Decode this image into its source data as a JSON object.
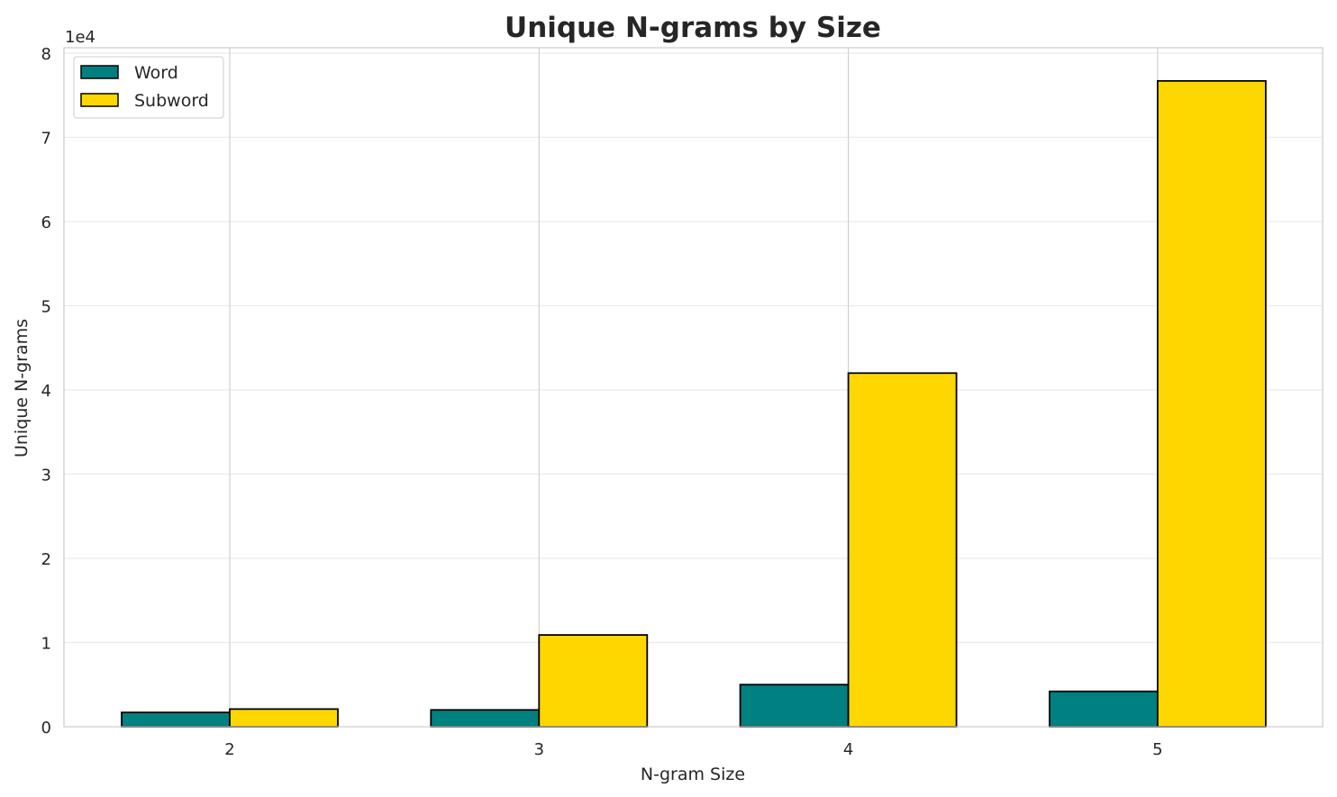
{
  "chart_data": {
    "type": "bar",
    "title": "Unique N-grams by Size",
    "xlabel": "N-gram Size",
    "ylabel": "Unique N-grams",
    "offset_label": "1e4",
    "categories": [
      "2",
      "3",
      "4",
      "5"
    ],
    "series": [
      {
        "name": "Word",
        "color": "#008080",
        "values": [
          1700,
          2000,
          5000,
          4200
        ]
      },
      {
        "name": "Subword",
        "color": "#FFD700",
        "values": [
          2100,
          10900,
          42000,
          76700
        ]
      }
    ],
    "ylim": [
      0,
      80000
    ],
    "yticks": [
      0,
      10000,
      20000,
      30000,
      40000,
      50000,
      60000,
      70000,
      80000
    ],
    "ytick_labels": [
      "0",
      "1",
      "2",
      "3",
      "4",
      "5",
      "6",
      "7",
      "8"
    ],
    "grid": true,
    "legend_position": "top-left"
  }
}
